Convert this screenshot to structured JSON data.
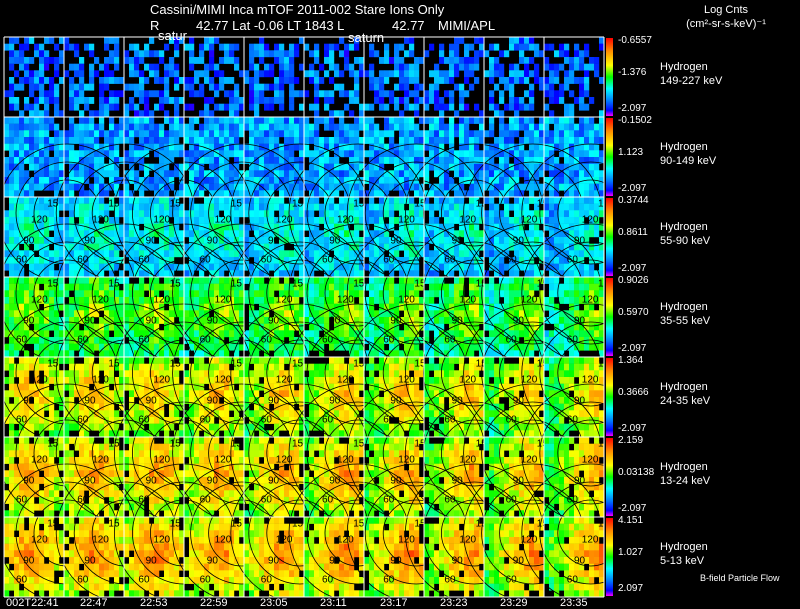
{
  "header": {
    "title": "Cassini/MIMI Inca mTOF  2011-002   Stare   Ions Only",
    "subline_r": "R",
    "subline_coords": "42.77 Lat -0.06 LT 1843 L",
    "subline_l": "42.77",
    "subline_inst": "MIMI/APL",
    "saturn_label_1": "satur",
    "saturn_label_2": "saturn"
  },
  "legend": {
    "units_line1": "Log Cnts",
    "units_line2": "(cm²-sr-s-keV)⁻¹",
    "footer": "B-field Particle Flow"
  },
  "colors": {
    "background": "#000000",
    "grid": "#ffffff",
    "colorbar_stops": [
      "#ff0000",
      "#ff8000",
      "#ffff00",
      "#00ff00",
      "#00ffff",
      "#0080ff",
      "#0000ff",
      "#ff00ff"
    ]
  },
  "chart_data": {
    "type": "heatmap",
    "title": "Cassini/MIMI Inca mTOF  2011-002   Stare   Ions Only",
    "time_labels": [
      "002T22:41",
      "22:47",
      "22:53",
      "22:59",
      "23:05",
      "23:11",
      "23:17",
      "23:23",
      "23:29",
      "23:35"
    ],
    "contour_labels": [
      "15",
      "120",
      "90",
      "60"
    ],
    "rows": [
      {
        "species": "Hydrogen",
        "energy": "149-227 keV",
        "cb_max": "-0.6557",
        "cb_mid": "-1.376",
        "cb_min": "-2.097",
        "level": 0.1,
        "fill": 0.55,
        "contours": false
      },
      {
        "species": "Hydrogen",
        "energy": "90-149 keV",
        "cb_max": "-0.1502",
        "cb_mid": "1.123",
        "cb_min": "-2.097",
        "level": 0.2,
        "fill": 0.85,
        "contours": false
      },
      {
        "species": "Hydrogen",
        "energy": "55-90 keV",
        "cb_max": "0.3744",
        "cb_mid": "0.8611",
        "cb_min": "-2.097",
        "level": 0.4,
        "fill": 0.85,
        "contours": true
      },
      {
        "species": "Hydrogen",
        "energy": "35-55 keV",
        "cb_max": "0.9026",
        "cb_mid": "0.5970",
        "cb_min": "-2.097",
        "level": 0.62,
        "fill": 0.85,
        "contours": true
      },
      {
        "species": "Hydrogen",
        "energy": "24-35 keV",
        "cb_max": "1.364",
        "cb_mid": "0.3666",
        "cb_min": "-2.097",
        "level": 0.78,
        "fill": 0.85,
        "contours": true
      },
      {
        "species": "Hydrogen",
        "energy": "13-24 keV",
        "cb_max": "2.159",
        "cb_mid": "0.03138",
        "cb_min": "-2.097",
        "level": 0.82,
        "fill": 0.85,
        "contours": true
      },
      {
        "species": "Hydrogen",
        "energy": "5-13 keV",
        "cb_max": "4.151",
        "cb_mid": "1.027",
        "cb_min": "2.097",
        "level": 0.86,
        "fill": 0.85,
        "contours": true
      }
    ]
  }
}
